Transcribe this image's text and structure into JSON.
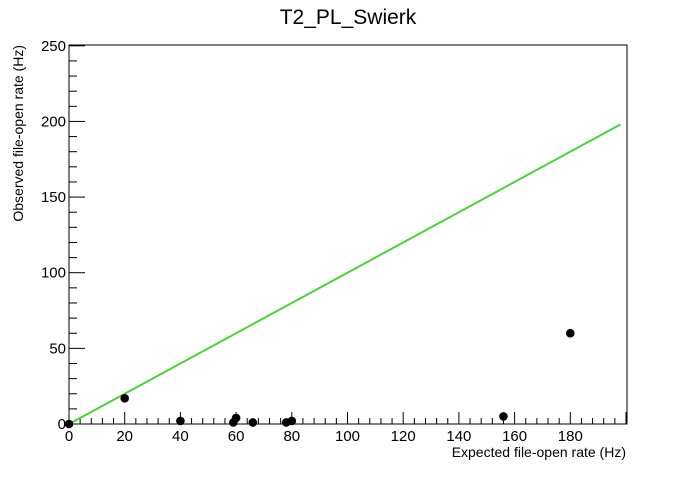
{
  "chart_data": {
    "type": "scatter",
    "title": "T2_PL_Swierk",
    "xlabel": "Expected file-open rate (Hz)",
    "ylabel": "Observed file-open rate (Hz)",
    "xlim": [
      0,
      200
    ],
    "ylim": [
      0,
      250
    ],
    "x_ticks": [
      0,
      20,
      40,
      60,
      80,
      100,
      120,
      140,
      160,
      180
    ],
    "y_ticks": [
      0,
      50,
      100,
      150,
      200,
      250
    ],
    "grid": false,
    "series": [
      {
        "type": "scatter",
        "color": "#000000",
        "points": [
          {
            "x": 0,
            "y": 0
          },
          {
            "x": 20,
            "y": 17
          },
          {
            "x": 40,
            "y": 2
          },
          {
            "x": 59,
            "y": 1
          },
          {
            "x": 60,
            "y": 4
          },
          {
            "x": 66,
            "y": 1
          },
          {
            "x": 78,
            "y": 1
          },
          {
            "x": 80,
            "y": 2
          },
          {
            "x": 156,
            "y": 5
          },
          {
            "x": 180,
            "y": 60
          }
        ]
      },
      {
        "type": "line",
        "color": "#4fcf3f",
        "points": [
          {
            "x": 0,
            "y": 0
          },
          {
            "x": 198,
            "y": 198
          }
        ]
      }
    ]
  }
}
